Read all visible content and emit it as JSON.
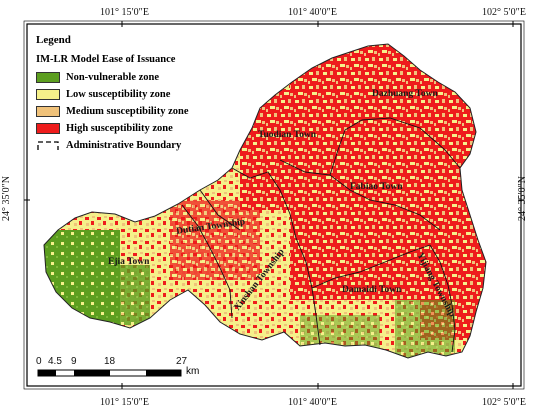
{
  "coords": {
    "top": [
      "101° 15′0″E",
      "101° 40′0″E",
      "102° 5′0″E"
    ],
    "bottom": [
      "101° 15′0″E",
      "101° 40′0″E",
      "102° 5′0″E"
    ],
    "left": "24° 35′0″N",
    "right": "24° 35′0″N"
  },
  "legend": {
    "title": "Legend",
    "subtitle": "IM-LR  Model Ease of Issuance",
    "items": [
      {
        "label": "Non-vulnerable zone",
        "color": "#5c9e1f"
      },
      {
        "label": "Low susceptibility zone",
        "color": "#f5f08a"
      },
      {
        "label": "Medium susceptibility zone",
        "color": "#f0c27a"
      },
      {
        "label": "High susceptibility zone",
        "color": "#ee1c1c"
      }
    ],
    "boundary_label": "Administrative Boundary"
  },
  "places": {
    "dazhuang": "Dazhuang Town",
    "tuodian": "Tuodian Town",
    "fabiao": "Fabiao Town",
    "dutian": "Dutian Township",
    "ejia": "Ejia Town",
    "xinshan": "Xinshan Township",
    "damaidi": "Damaidi Town",
    "yijiang": "Yijiang Township"
  },
  "scale": {
    "ticks": [
      "0",
      "4.5",
      "9",
      "18",
      "27"
    ],
    "unit": "km"
  }
}
